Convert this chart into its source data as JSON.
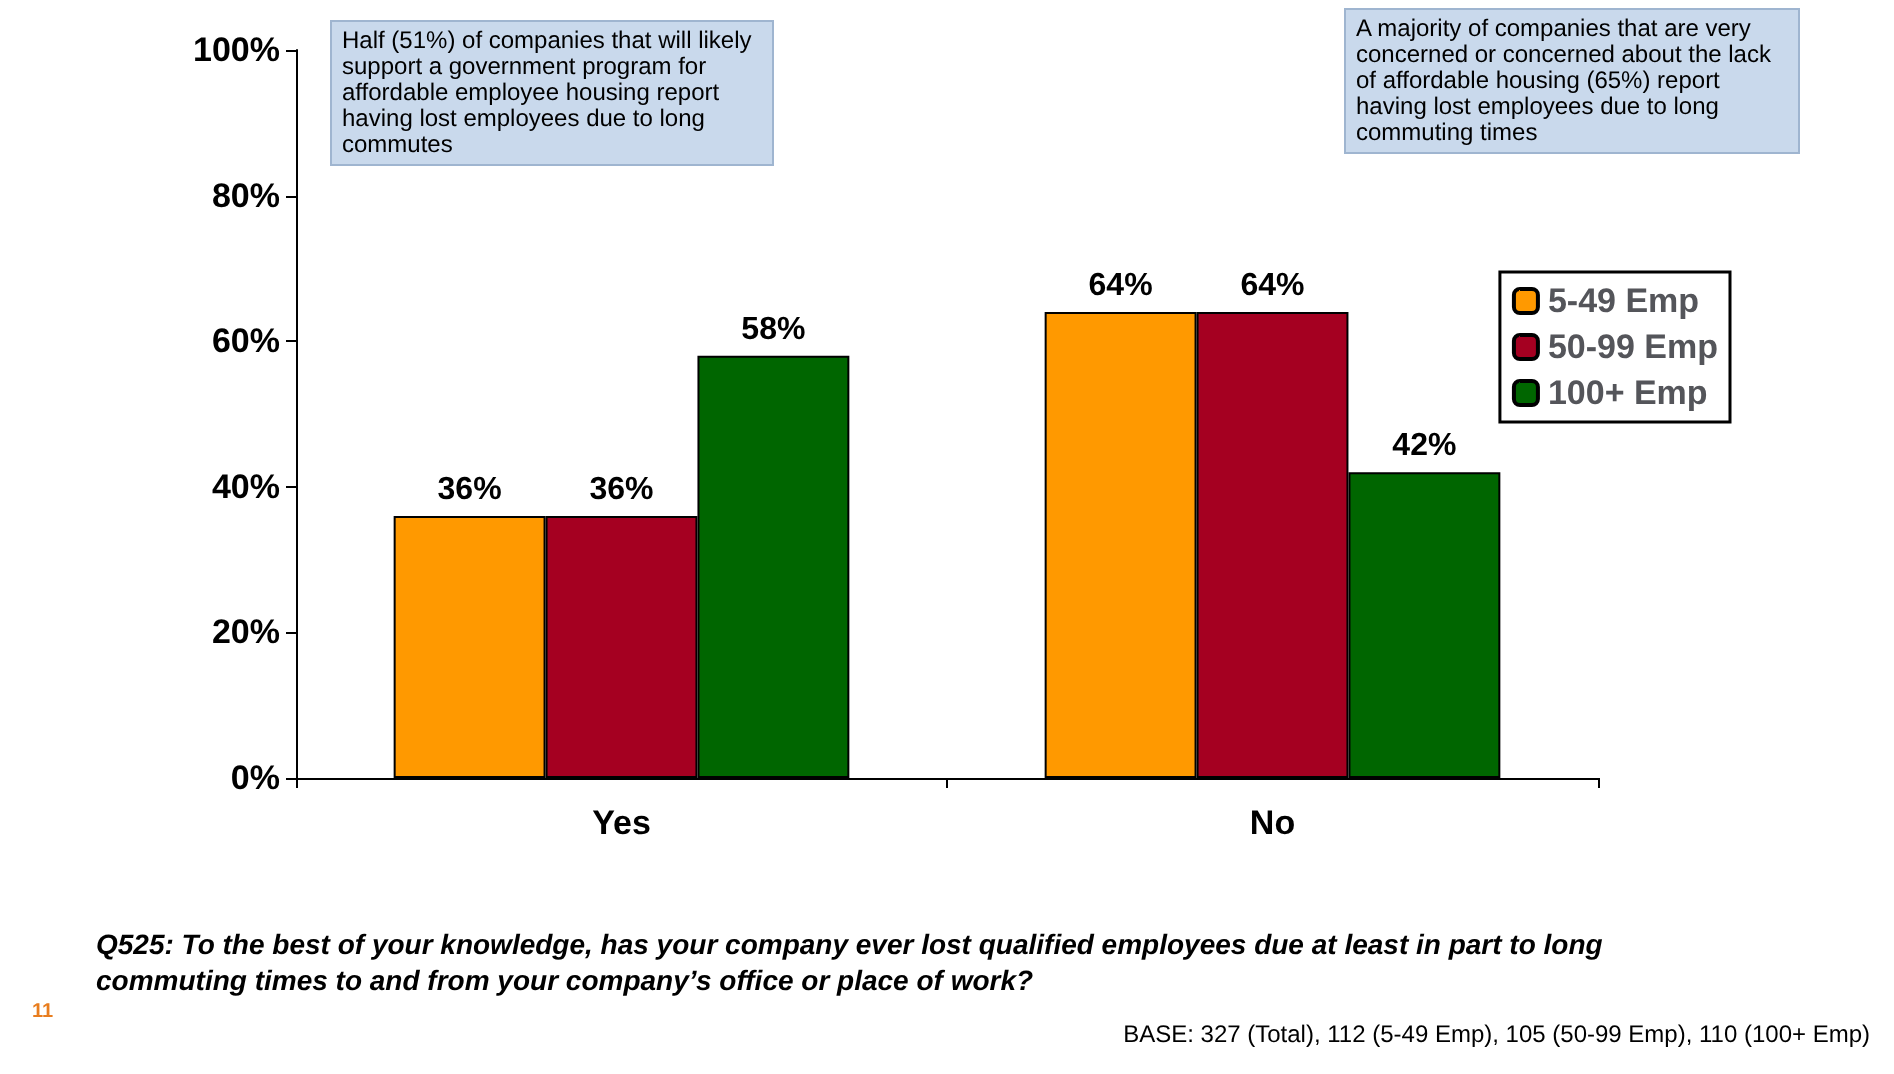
{
  "chart_data": {
    "type": "bar",
    "categories": [
      "Yes",
      "No"
    ],
    "series": [
      {
        "name": "5-49 Emp",
        "color": "#ff9900",
        "values": [
          36,
          64
        ],
        "value_labels": [
          "36%",
          "64%"
        ]
      },
      {
        "name": "50-99 Emp",
        "color": "#a50021",
        "values": [
          36,
          64
        ],
        "value_labels": [
          "36%",
          "64%"
        ]
      },
      {
        "name": "100+ Emp",
        "color": "#006600",
        "values": [
          58,
          42
        ],
        "value_labels": [
          "58%",
          "42%"
        ]
      }
    ],
    "ylim": [
      0,
      100
    ],
    "yticks": [
      {
        "value": 0,
        "label": "0%"
      },
      {
        "value": 20,
        "label": "20%"
      },
      {
        "value": 40,
        "label": "40%"
      },
      {
        "value": 60,
        "label": "60%"
      },
      {
        "value": 80,
        "label": "80%"
      },
      {
        "value": 100,
        "label": "100%"
      }
    ],
    "grid": false,
    "legend": "right",
    "annotations": [
      "Half (51%) of companies that will likely support a government program for affordable employee housing report having lost employees due to long commutes",
      "A majority of companies that are very concerned or concerned about the lack of affordable housing  (65%) report having lost employees due to long commuting times",
      "Q525: To the best of your knowledge, has your company ever lost qualified employees due at least in part to long commuting times to and from your company’s office or place of work?",
      "BASE: 327 (Total), 112 (5-49 Emp), 105 (50-99 Emp), 110 (100+ Emp)",
      "11"
    ]
  }
}
